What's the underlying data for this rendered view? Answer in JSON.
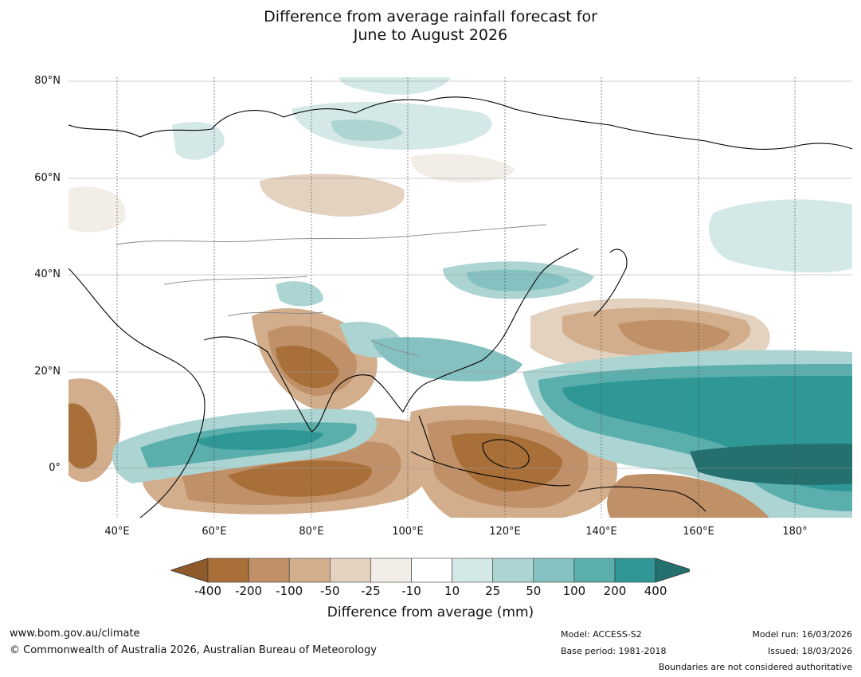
{
  "title": {
    "line1": "Difference from average rainfall forecast for",
    "line2": "June to August 2026"
  },
  "map": {
    "lat_labels": [
      "80°N",
      "60°N",
      "40°N",
      "20°N",
      "0°"
    ],
    "lon_labels": [
      "40°E",
      "60°E",
      "80°E",
      "100°E",
      "120°E",
      "140°E",
      "160°E",
      "180°"
    ]
  },
  "legend": {
    "ticks": [
      "-400",
      "-200",
      "-100",
      "-50",
      "-25",
      "-10",
      "10",
      "25",
      "50",
      "100",
      "200",
      "400"
    ],
    "colors": [
      "#a87038",
      "#c09068",
      "#d2ae8c",
      "#e3d2c0",
      "#f2ede6",
      "#ffffff",
      "#d3e8e7",
      "#acd4d3",
      "#85c1c0",
      "#5aaeac",
      "#2f9795"
    ],
    "under_color": "#8e5a2a",
    "over_color": "#23706e",
    "title": "Difference from average (mm)"
  },
  "footer": {
    "website": "www.bom.gov.au/climate",
    "copyright": "© Commonwealth of Australia 2026, Australian Bureau of Meteorology",
    "model": "Model: ACCESS-S2",
    "base_period": "Base period: 1981-2018",
    "model_run": "Model run: 16/03/2026",
    "issued": "Issued: 18/03/2026",
    "boundaries": "Boundaries are not considered authoritative"
  }
}
